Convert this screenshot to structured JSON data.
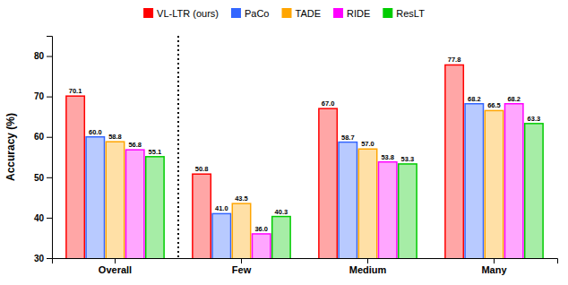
{
  "chart_data": {
    "type": "bar",
    "categories": [
      "Overall",
      "Few",
      "Medium",
      "Many"
    ],
    "series": [
      {
        "name": "VL-LTR (ours)",
        "color": "#FF0000",
        "values": [
          70.1,
          50.8,
          67.0,
          77.8
        ],
        "value_labels": [
          "70.1",
          "50.8",
          "67.0",
          "77.8"
        ]
      },
      {
        "name": "PaCo",
        "color": "#3366FF",
        "values": [
          60.0,
          41.0,
          58.7,
          68.2
        ],
        "value_labels": [
          "60.0",
          "41.0",
          "58.7",
          "68.2"
        ]
      },
      {
        "name": "TADE",
        "color": "#FFA500",
        "values": [
          58.8,
          43.5,
          57.0,
          66.5
        ],
        "value_labels": [
          "58.8",
          "43.5",
          "57.0",
          "66.5"
        ]
      },
      {
        "name": "RIDE",
        "color": "#FF00FF",
        "values": [
          56.8,
          36.0,
          53.8,
          68.2
        ],
        "value_labels": [
          "56.8",
          "36.0",
          "53.8",
          "68.2"
        ]
      },
      {
        "name": "ResLT",
        "color": "#00CC00",
        "values": [
          55.1,
          40.3,
          53.3,
          63.3
        ],
        "value_labels": [
          "55.1",
          "40.3",
          "53.3",
          "63.3"
        ]
      }
    ],
    "ylabel": "Accuracy (%)",
    "ylim": [
      30,
      85
    ],
    "yticks": [
      30,
      40,
      50,
      60,
      70,
      80
    ],
    "grid": false,
    "legend": "top",
    "data_labels": true
  }
}
